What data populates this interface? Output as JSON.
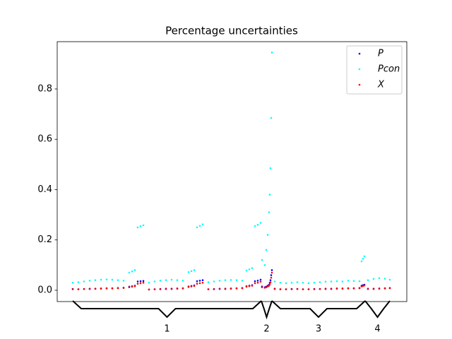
{
  "chart_data": {
    "type": "scatter",
    "title": "Percentage uncertainties",
    "x": [
      0,
      8,
      16,
      24,
      32,
      40,
      48,
      56,
      64,
      72,
      80,
      84,
      88,
      92,
      96,
      100,
      108,
      116,
      124,
      132,
      140,
      148,
      156,
      164,
      168,
      172,
      176,
      180,
      184,
      192,
      200,
      208,
      216,
      224,
      232,
      240,
      246,
      250,
      254,
      258,
      262,
      266,
      268,
      272,
      274,
      276,
      278,
      279,
      280,
      281,
      282,
      286,
      294,
      302,
      310,
      318,
      326,
      334,
      342,
      350,
      358,
      366,
      374,
      382,
      390,
      398,
      406,
      409,
      411,
      413,
      418,
      426,
      434,
      442,
      449
    ],
    "series": [
      {
        "name": "P",
        "color": "#0000ff",
        "values": [
          0.005,
          0.004,
          0.005,
          0.006,
          0.006,
          0.007,
          0.008,
          0.008,
          0.009,
          0.01,
          0.014,
          0.016,
          0.018,
          0.035,
          0.036,
          0.037,
          0.003,
          0.004,
          0.005,
          0.006,
          0.006,
          0.007,
          0.008,
          0.015,
          0.017,
          0.019,
          0.036,
          0.038,
          0.04,
          0.004,
          0.005,
          0.006,
          0.006,
          0.007,
          0.008,
          0.009,
          0.016,
          0.018,
          0.02,
          0.036,
          0.038,
          0.042,
          0.015,
          0.012,
          0.014,
          0.018,
          0.022,
          0.03,
          0.04,
          0.06,
          0.08,
          0.006,
          0.004,
          0.004,
          0.005,
          0.005,
          0.004,
          0.004,
          0.005,
          0.005,
          0.006,
          0.006,
          0.007,
          0.007,
          0.008,
          0.008,
          0.009,
          0.018,
          0.02,
          0.022,
          0.006,
          0.006,
          0.007,
          0.008,
          0.009
        ]
      },
      {
        "name": "Pcon",
        "color": "#00ffff",
        "values": [
          0.03,
          0.032,
          0.035,
          0.038,
          0.04,
          0.042,
          0.043,
          0.042,
          0.04,
          0.038,
          0.07,
          0.075,
          0.08,
          0.25,
          0.255,
          0.258,
          0.03,
          0.035,
          0.038,
          0.04,
          0.042,
          0.04,
          0.038,
          0.072,
          0.076,
          0.08,
          0.25,
          0.256,
          0.262,
          0.032,
          0.035,
          0.038,
          0.04,
          0.041,
          0.04,
          0.038,
          0.078,
          0.083,
          0.088,
          0.255,
          0.26,
          0.268,
          0.12,
          0.1,
          0.16,
          0.22,
          0.31,
          0.38,
          0.485,
          0.685,
          0.945,
          0.035,
          0.03,
          0.028,
          0.03,
          0.032,
          0.03,
          0.028,
          0.03,
          0.032,
          0.034,
          0.035,
          0.036,
          0.035,
          0.038,
          0.037,
          0.036,
          0.115,
          0.125,
          0.135,
          0.04,
          0.045,
          0.048,
          0.046,
          0.042
        ]
      },
      {
        "name": "X",
        "color": "#ff0000",
        "values": [
          0.004,
          0.004,
          0.005,
          0.005,
          0.006,
          0.006,
          0.007,
          0.007,
          0.008,
          0.009,
          0.012,
          0.014,
          0.016,
          0.026,
          0.028,
          0.03,
          0.003,
          0.004,
          0.004,
          0.005,
          0.005,
          0.006,
          0.007,
          0.013,
          0.015,
          0.017,
          0.026,
          0.028,
          0.03,
          0.004,
          0.004,
          0.005,
          0.005,
          0.006,
          0.007,
          0.008,
          0.014,
          0.016,
          0.018,
          0.028,
          0.03,
          0.034,
          0.012,
          0.01,
          0.012,
          0.015,
          0.018,
          0.024,
          0.032,
          0.05,
          0.07,
          0.005,
          0.004,
          0.004,
          0.004,
          0.005,
          0.004,
          0.004,
          0.004,
          0.005,
          0.005,
          0.005,
          0.006,
          0.006,
          0.007,
          0.007,
          0.008,
          0.015,
          0.017,
          0.019,
          0.005,
          0.005,
          0.006,
          0.007,
          0.008
        ]
      }
    ],
    "xlim": [
      -22,
      473
    ],
    "ylim": [
      -0.045,
      0.988
    ],
    "yticks": [
      {
        "value": 0,
        "label": "0.0"
      },
      0.2,
      0.4,
      0.6,
      0.8
    ],
    "groups": [
      {
        "label": "1",
        "start": 0,
        "end": 267
      },
      {
        "label": "2",
        "start": 267,
        "end": 282
      },
      {
        "label": "3",
        "start": 282,
        "end": 414
      },
      {
        "label": "4",
        "start": 414,
        "end": 449
      }
    ],
    "legend": "upper right"
  }
}
